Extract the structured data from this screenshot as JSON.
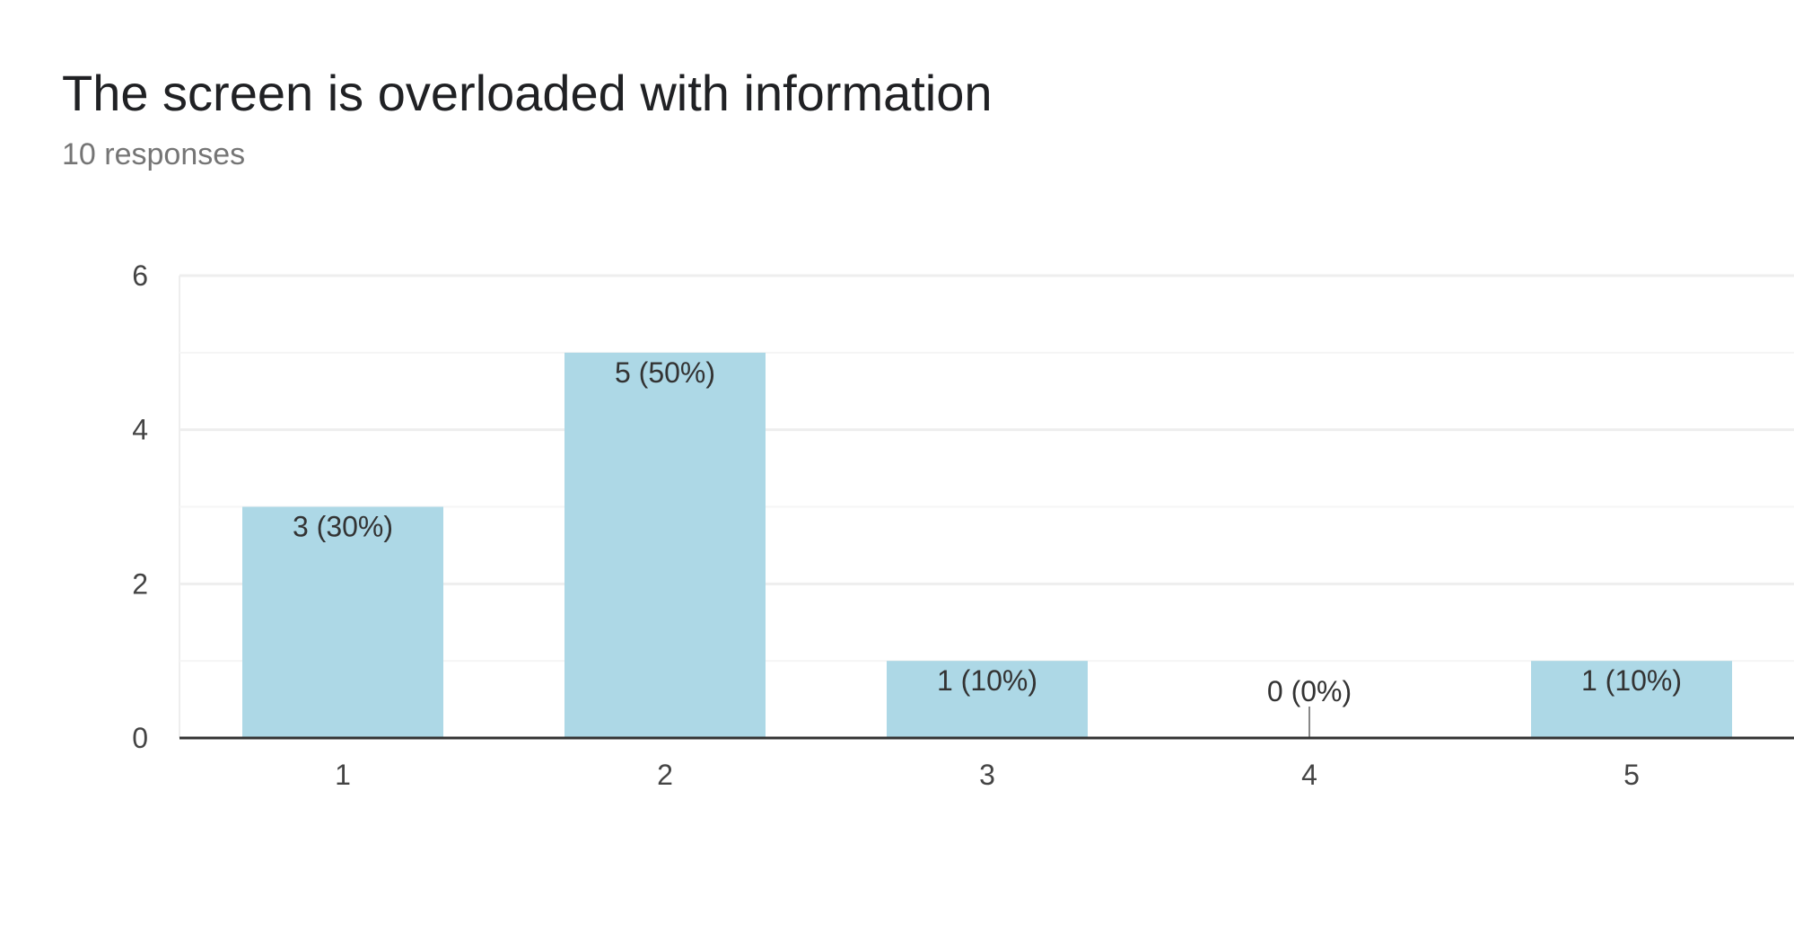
{
  "card": {
    "title": "The screen is overloaded with information",
    "subtitle": "10 responses"
  },
  "colors": {
    "bar": "#add8e6",
    "gridline": "#eeeeee",
    "minor_gridline": "#f5f5f5",
    "baseline": "#333333",
    "tick_text": "#444444"
  },
  "chart_data": {
    "type": "bar",
    "title": "The screen is overloaded with information",
    "subtitle": "10 responses",
    "categories": [
      "1",
      "2",
      "3",
      "4",
      "5"
    ],
    "values": [
      3,
      5,
      1,
      0,
      1
    ],
    "data_labels": [
      "3 (30%)",
      "5 (50%)",
      "1 (10%)",
      "0 (0%)",
      "1 (10%)"
    ],
    "y_ticks": [
      0,
      2,
      4,
      6
    ],
    "ylim": [
      0,
      6
    ],
    "xlabel": "",
    "ylabel": "",
    "grid": true,
    "legend": "none"
  }
}
